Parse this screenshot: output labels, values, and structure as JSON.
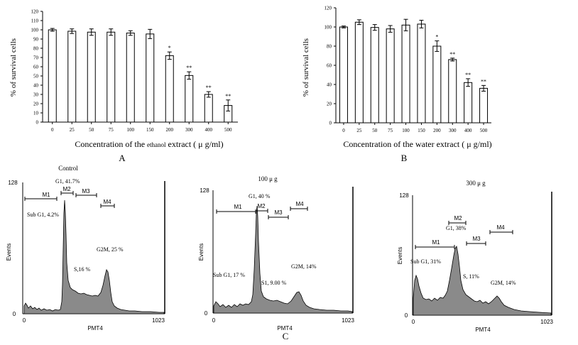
{
  "chart_data": [
    {
      "panel": "A",
      "type": "bar",
      "ylabel": "% of survival cells",
      "xlabel_prefix": "Concentration of the ",
      "xlabel_small": "ethanol",
      "xlabel_suffix": " extract ( μ g/ml)",
      "categories": [
        "0",
        "25",
        "50",
        "75",
        "100",
        "150",
        "200",
        "300",
        "400",
        "500"
      ],
      "values": [
        100,
        98.5,
        97.5,
        97.5,
        96.5,
        95.5,
        72,
        50.5,
        30,
        18
      ],
      "errors": [
        1.5,
        2.5,
        3.5,
        3.5,
        2.5,
        5,
        4,
        4,
        3,
        6
      ],
      "significance": [
        "",
        "",
        "",
        "",
        "",
        "",
        "*",
        "**",
        "**",
        "**"
      ],
      "ylim": [
        0,
        120
      ],
      "yticks": [
        0,
        10,
        20,
        30,
        40,
        50,
        60,
        70,
        80,
        90,
        100,
        110,
        120
      ]
    },
    {
      "panel": "B",
      "type": "bar",
      "ylabel": "% of survival cells",
      "xlabel": "Concentration of the water extract ( μ g/ml)",
      "categories": [
        "0",
        "25",
        "50",
        "75",
        "100",
        "150",
        "200",
        "300",
        "400",
        "500"
      ],
      "values": [
        100,
        105,
        99.5,
        98,
        102,
        103,
        80,
        66,
        42,
        36
      ],
      "errors": [
        1,
        2.5,
        3,
        3.5,
        6,
        4,
        5.5,
        1.5,
        4,
        3
      ],
      "significance": [
        "",
        "",
        "",
        "",
        "",
        "",
        "*",
        "**",
        "**",
        "**"
      ],
      "ylim": [
        0,
        120
      ],
      "yticks": [
        0,
        20,
        40,
        60,
        80,
        100,
        120
      ]
    },
    {
      "panel": "C",
      "type": "area",
      "histograms": [
        {
          "title": "Control",
          "ylabel": "Events",
          "xlabel": "PMT4",
          "x_ticks": [
            "0",
            "1023"
          ],
          "y_ticks": [
            "0",
            "128"
          ],
          "markers": [
            "M1",
            "M2",
            "M3",
            "M4"
          ],
          "annotations": [
            "G1, 41.7%",
            "Sub G1, 4.2%",
            "G2M, 25 %",
            "S,16 %"
          ]
        },
        {
          "title": "100 μ g",
          "ylabel": "Events",
          "xlabel": "PMT4",
          "x_ticks": [
            "0",
            "1023"
          ],
          "y_ticks": [
            "0",
            "128"
          ],
          "markers": [
            "M1",
            "M2",
            "M3",
            "M4"
          ],
          "annotations": [
            "G1, 40 %",
            "Sub G1, 17 %",
            "G2M, 14%",
            "S1, 9.00 %"
          ]
        },
        {
          "title": "300 μ g",
          "ylabel": "Events",
          "xlabel": "PMT4",
          "x_ticks": [
            "0",
            "1023"
          ],
          "y_ticks": [
            "0",
            "128"
          ],
          "markers": [
            "M1",
            "M2",
            "M3",
            "M4"
          ],
          "annotations": [
            "G1, 38%",
            "Sub G1, 31%",
            "S, 11%",
            "G2M, 14%"
          ]
        }
      ]
    }
  ],
  "panel_labels": {
    "a": "A",
    "b": "B",
    "c": "C"
  },
  "colors": {
    "fill": "#8a8a8a",
    "line": "#000000"
  }
}
